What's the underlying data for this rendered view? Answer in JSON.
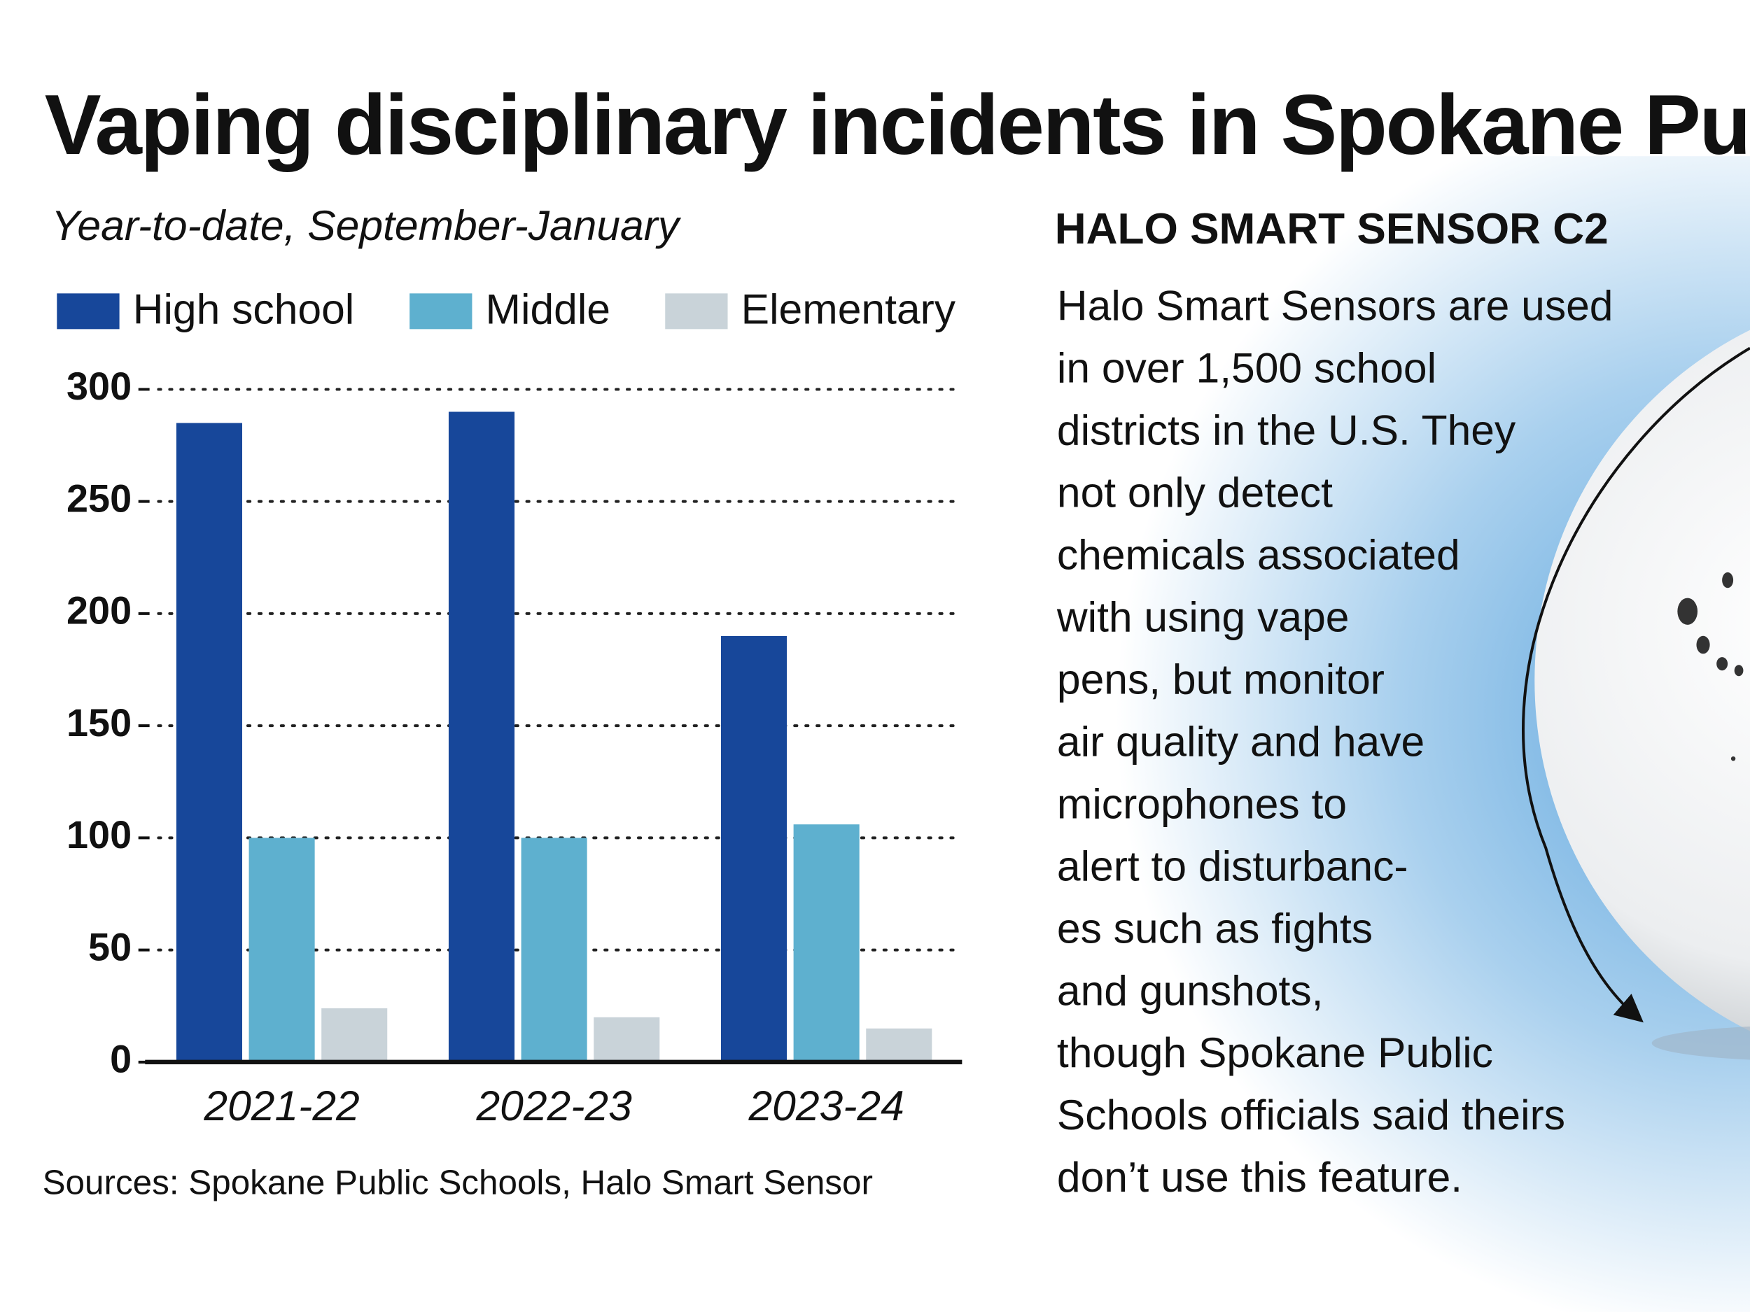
{
  "chart_data": {
    "type": "bar",
    "title": "Vaping disciplinary incidents in Spokane Public Schools",
    "subtitle": "Year-to-date, September-January",
    "categories": [
      "2021-22",
      "2022-23",
      "2023-24"
    ],
    "series": [
      {
        "name": "High school",
        "color": "#17479a",
        "values": [
          285,
          290,
          190
        ]
      },
      {
        "name": "Middle",
        "color": "#5eb0cf",
        "values": [
          100,
          100,
          106
        ]
      },
      {
        "name": "Elementary",
        "color": "#c9d3d9",
        "values": [
          24,
          20,
          15
        ]
      }
    ],
    "ylim": [
      0,
      300
    ],
    "yticks": [
      0,
      50,
      100,
      150,
      200,
      250,
      300
    ],
    "grid": true,
    "legend": "top",
    "source": "Sources: Spokane Public Schools, Halo Smart Sensor"
  },
  "sidebar": {
    "heading": "HALO SMART SENSOR C2",
    "lines": [
      "Halo Smart Sensors are used",
      "in over 1,500 school",
      "districts in the U.S. They",
      "not only detect",
      "chemicals associated",
      "with using vape",
      "pens, but monitor",
      "air quality and have",
      "microphones to",
      "alert to disturbanc-",
      "es such as fights",
      "and gunshots,",
      "though Spokane Public",
      "Schools officials said theirs",
      "don’t use this feature."
    ]
  }
}
